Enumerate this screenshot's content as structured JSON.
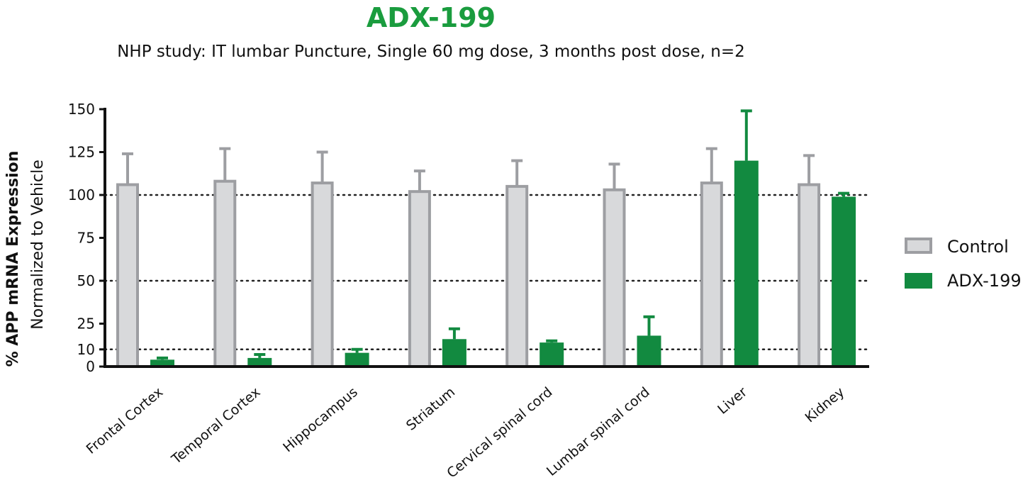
{
  "chart_data": {
    "type": "bar",
    "title": "ADX-199",
    "subtitle": "NHP study: IT lumbar Puncture, Single 60 mg dose, 3 months post dose, n=2",
    "ylabel_line1": "% APP mRNA Expression",
    "ylabel_line2": "Normalized to Vehicle",
    "xlabel": "",
    "ylim": [
      0,
      150
    ],
    "yticks": [
      0,
      10,
      25,
      50,
      75,
      100,
      125,
      150
    ],
    "reference_lines": [
      10,
      50,
      100
    ],
    "legend_position": "right",
    "categories": [
      "Frontal Cortex",
      "Temporal Cortex",
      "Hippocampus",
      "Striatum",
      "Cervical spinal cord",
      "Lumbar spinal cord",
      "Liver",
      "Kidney"
    ],
    "series": [
      {
        "name": "Control",
        "values": [
          106,
          108,
          107,
          102,
          105,
          103,
          107,
          106
        ],
        "errors": [
          18,
          19,
          18,
          12,
          15,
          15,
          20,
          17
        ]
      },
      {
        "name": "ADX-199",
        "values": [
          4,
          5,
          8,
          16,
          14,
          18,
          120,
          99
        ],
        "errors": [
          1,
          2,
          2,
          6,
          1,
          11,
          29,
          2
        ]
      }
    ]
  },
  "colors": {
    "title": "#1a9c3e",
    "control_fill": "#d8d9db",
    "control_stroke": "#9d9ea2",
    "adx_fill": "#128a40",
    "axis": "#111111"
  }
}
